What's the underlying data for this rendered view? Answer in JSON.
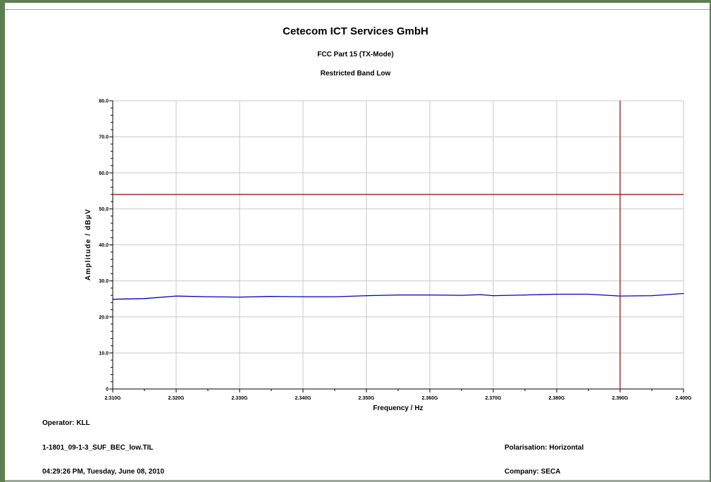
{
  "header": {
    "title": "Cetecom ICT Services GmbH",
    "subtitle1": "FCC Part 15 (TX-Mode)",
    "subtitle2": "Restricted Band Low"
  },
  "footer": {
    "operator": "Operator: KLL",
    "file": "1-1801_09-1-3_SUF_BEC_low.TIL",
    "timestamp": "04:29:26 PM, Tuesday, June 08, 2010",
    "polarisation": "Polarisation: Horizontal",
    "company": "Company: SECA"
  },
  "colors": {
    "trace": "#0000c0",
    "limit": "#9b1c1c",
    "marker": "#8b1a1a",
    "grid": "#c8c8c8",
    "frame": "#5f7f52"
  },
  "chart_data": {
    "type": "line",
    "xlabel": "Frequency / Hz",
    "ylabel": "Amplitude / dBµV",
    "xlim": [
      2.31,
      2.4
    ],
    "ylim": [
      0,
      80
    ],
    "x_ticks": [
      {
        "value": 2.31,
        "label": "2.310G"
      },
      {
        "value": 2.32,
        "label": "2.320G"
      },
      {
        "value": 2.33,
        "label": "2.330G"
      },
      {
        "value": 2.34,
        "label": "2.340G"
      },
      {
        "value": 2.35,
        "label": "2.350G"
      },
      {
        "value": 2.36,
        "label": "2.360G"
      },
      {
        "value": 2.37,
        "label": "2.370G"
      },
      {
        "value": 2.38,
        "label": "2.380G"
      },
      {
        "value": 2.39,
        "label": "2.390G"
      },
      {
        "value": 2.4,
        "label": "2.400G"
      }
    ],
    "y_ticks": [
      {
        "value": 0,
        "label": "0"
      },
      {
        "value": 10,
        "label": "10.0"
      },
      {
        "value": 20,
        "label": "20.0"
      },
      {
        "value": 30,
        "label": "30.0"
      },
      {
        "value": 40,
        "label": "40.0"
      },
      {
        "value": 50,
        "label": "50.0"
      },
      {
        "value": 60,
        "label": "60.0"
      },
      {
        "value": 70,
        "label": "70.0"
      },
      {
        "value": 80,
        "label": "80.0"
      }
    ],
    "grid": true,
    "limit_line": 54.0,
    "marker_x": 2.39,
    "series": [
      {
        "x": [
          2.31,
          2.315,
          2.32,
          2.325,
          2.33,
          2.335,
          2.34,
          2.345,
          2.35,
          2.355,
          2.36,
          2.365,
          2.368,
          2.37,
          2.375,
          2.38,
          2.385,
          2.39,
          2.395,
          2.4
        ],
        "y": [
          24.9,
          25.1,
          25.8,
          25.6,
          25.5,
          25.7,
          25.6,
          25.6,
          25.9,
          26.1,
          26.1,
          26.0,
          26.2,
          25.9,
          26.1,
          26.3,
          26.3,
          25.8,
          25.9,
          26.5
        ]
      }
    ]
  }
}
